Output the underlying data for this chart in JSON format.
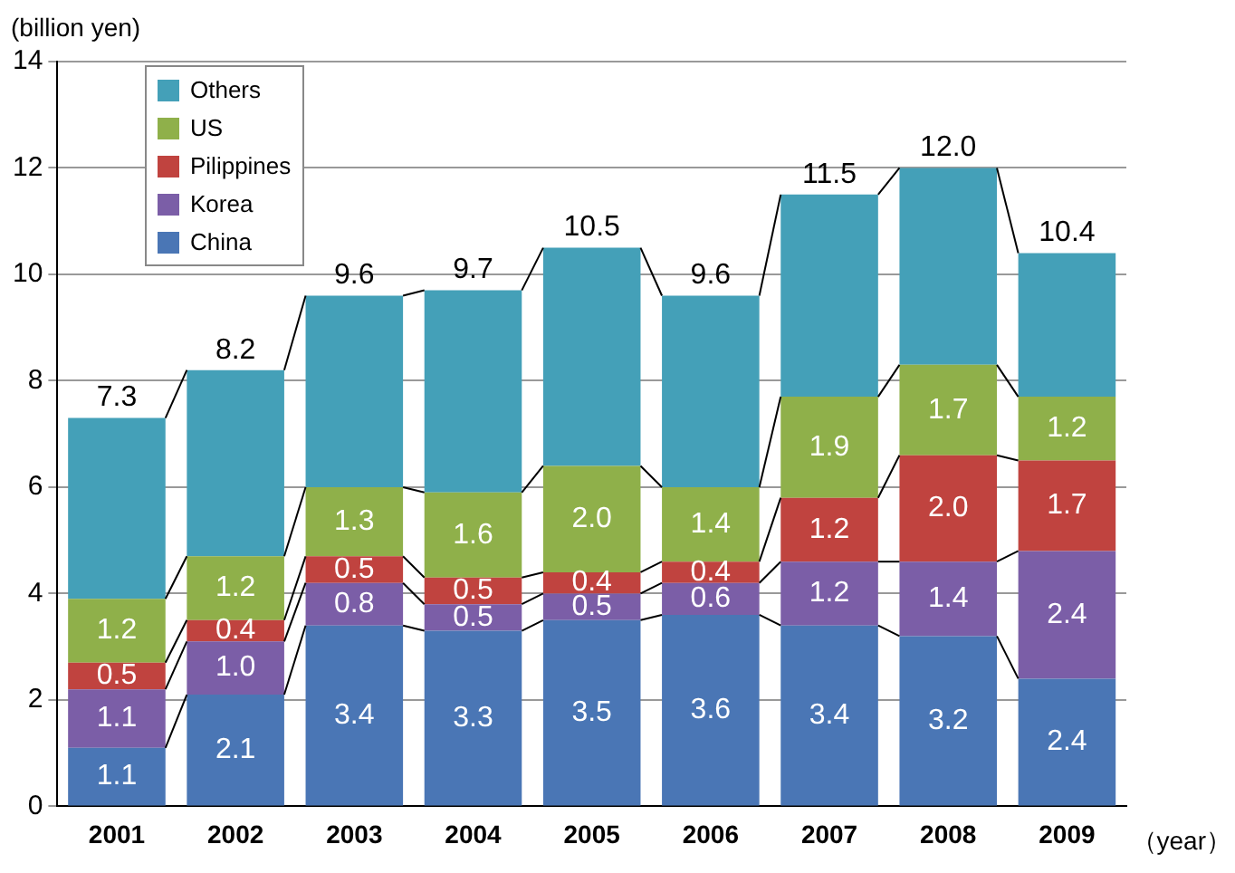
{
  "chart_data": {
    "type": "bar",
    "stacked": true,
    "ylabel": "(billion yen)",
    "xlabel": "（year）",
    "categories": [
      "2001",
      "2002",
      "2003",
      "2004",
      "2005",
      "2006",
      "2007",
      "2008",
      "2009"
    ],
    "series": [
      {
        "name": "China",
        "color": "#4a76b5",
        "values": [
          1.1,
          2.1,
          3.4,
          3.3,
          3.5,
          3.6,
          3.4,
          3.2,
          2.4
        ],
        "value_labels": [
          "1.1",
          "2.1",
          "3.4",
          "3.3",
          "3.5",
          "3.6",
          "3.4",
          "3.2",
          "2.4"
        ]
      },
      {
        "name": "Korea",
        "color": "#7b5ea7",
        "values": [
          1.1,
          1.0,
          0.8,
          0.5,
          0.5,
          0.6,
          1.2,
          1.4,
          2.4
        ],
        "value_labels": [
          "1.1",
          "1.0",
          "0.8",
          "0.5",
          "0.5",
          "0.6",
          "1.2",
          "1.4",
          "2.4"
        ]
      },
      {
        "name": "Pilippines",
        "color": "#c0433f",
        "values": [
          0.5,
          0.4,
          0.5,
          0.5,
          0.4,
          0.4,
          1.2,
          2.0,
          1.7
        ],
        "value_labels": [
          "0.5",
          "0.4",
          "0.5",
          "0.5",
          "0.4",
          "0.4",
          "1.2",
          "2.0",
          "1.7"
        ]
      },
      {
        "name": "US",
        "color": "#8fb04a",
        "values": [
          1.2,
          1.2,
          1.3,
          1.6,
          2.0,
          1.4,
          1.9,
          1.7,
          1.2
        ],
        "value_labels": [
          "1.2",
          "1.2",
          "1.3",
          "1.6",
          "2.0",
          "1.4",
          "1.9",
          "1.7",
          "1.2"
        ]
      },
      {
        "name": "Others",
        "color": "#44a0b8",
        "values": [
          3.4,
          3.5,
          3.6,
          3.8,
          4.1,
          3.6,
          3.8,
          3.7,
          2.7
        ]
      }
    ],
    "totals": [
      "7.3",
      "8.2",
      "9.6",
      "9.7",
      "10.5",
      "9.6",
      "11.5",
      "12.0",
      "10.4"
    ],
    "ylim": [
      0,
      14
    ],
    "yticks": [
      0,
      2,
      4,
      6,
      8,
      10,
      12,
      14
    ],
    "grid": "y",
    "legend": "top left"
  }
}
